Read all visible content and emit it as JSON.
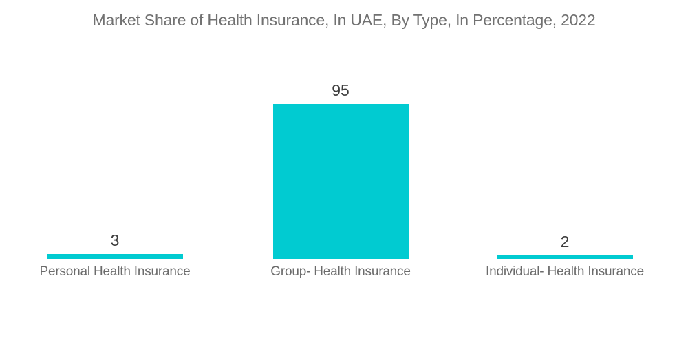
{
  "chart_data": {
    "type": "bar",
    "title": "Market Share of Health Insurance, In UAE, By Type, In Percentage, 2022",
    "categories": [
      "Personal Health Insurance",
      "Group- Health Insurance",
      "Individual- Health Insurance"
    ],
    "values": [
      3,
      95,
      2
    ],
    "value_labels": [
      "3",
      "95",
      "2"
    ],
    "xlabel": "",
    "ylabel": "",
    "ylim": [
      0,
      95
    ],
    "grid": false,
    "legend": "none",
    "bar_color": "#01cbd1",
    "title_color": "#717171",
    "value_label_color": "#3d3d3d",
    "category_label_color": "#6b6b6b",
    "background_color": "#ffffff"
  }
}
